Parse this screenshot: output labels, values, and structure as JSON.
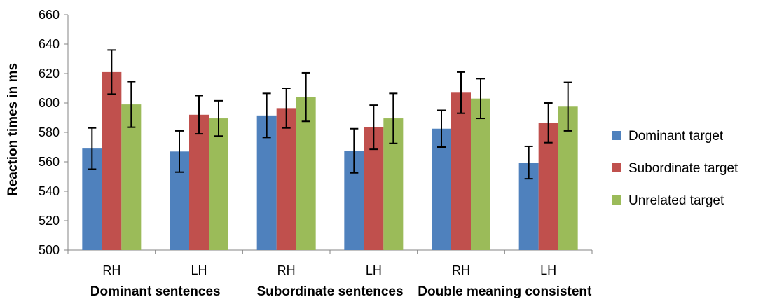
{
  "chart_data": {
    "type": "bar",
    "categories": [
      "RH",
      "LH",
      "RH",
      "LH",
      "RH",
      "LH"
    ],
    "groups": [
      "Dominant sentences",
      "Subordinate sentences",
      "Double meaning consistent"
    ],
    "ylabel": "Reaction times in ms",
    "xlabel": "",
    "ylim": [
      500,
      660
    ],
    "yticks": [
      "500",
      "520",
      "540",
      "560",
      "580",
      "600",
      "620",
      "640",
      "660"
    ],
    "grid": false,
    "legend_position": "right",
    "series": [
      {
        "name": "Dominant target",
        "color": "#4F81BD",
        "values": [
          569,
          567,
          591.5,
          567.5,
          582.5,
          559.5
        ],
        "errors": [
          14,
          14,
          15,
          15,
          12.5,
          11
        ]
      },
      {
        "name": "Subordinate target",
        "color": "#C0504D",
        "values": [
          621,
          592,
          596.5,
          583.5,
          607,
          586.5
        ],
        "errors": [
          15,
          13,
          13.5,
          15,
          14,
          13.5
        ]
      },
      {
        "name": "Unrelated target",
        "color": "#9BBB59",
        "values": [
          599,
          589.5,
          604,
          589.5,
          603,
          597.5
        ],
        "errors": [
          15.5,
          12,
          16.5,
          17,
          13.5,
          16.5
        ]
      }
    ]
  }
}
